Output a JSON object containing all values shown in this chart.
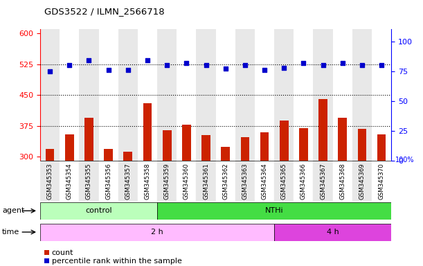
{
  "title": "GDS3522 / ILMN_2566718",
  "samples": [
    "GSM345353",
    "GSM345354",
    "GSM345355",
    "GSM345356",
    "GSM345357",
    "GSM345358",
    "GSM345359",
    "GSM345360",
    "GSM345361",
    "GSM345362",
    "GSM345363",
    "GSM345364",
    "GSM345365",
    "GSM345366",
    "GSM345367",
    "GSM345368",
    "GSM345369",
    "GSM345370"
  ],
  "counts": [
    320,
    355,
    395,
    320,
    313,
    430,
    365,
    378,
    352,
    325,
    348,
    360,
    388,
    370,
    440,
    395,
    368,
    355
  ],
  "percentile_ranks": [
    75,
    80,
    84,
    76,
    76,
    84,
    80,
    82,
    80,
    77,
    80,
    76,
    78,
    82,
    80,
    82,
    80,
    80
  ],
  "agent_control_count": 6,
  "agent_nthi_count": 12,
  "time_2h_count": 12,
  "time_4h_count": 6,
  "agent_control_color": "#bbffbb",
  "agent_nthi_color": "#44dd44",
  "time_2h_color": "#ffbbff",
  "time_4h_color": "#dd44dd",
  "bar_color": "#cc2200",
  "dot_color": "#0000cc",
  "plot_bg_color": "#ffffff",
  "col_bg_odd": "#e8e8e8",
  "col_bg_even": "#ffffff",
  "ylim_left": [
    290,
    610
  ],
  "ylim_right": [
    0,
    110
  ],
  "yticks_left": [
    300,
    375,
    450,
    525,
    600
  ],
  "yticks_right": [
    0,
    25,
    50,
    75,
    100
  ],
  "hlines": [
    375,
    450,
    525
  ],
  "fig_width": 6.11,
  "fig_height": 3.84,
  "dpi": 100
}
